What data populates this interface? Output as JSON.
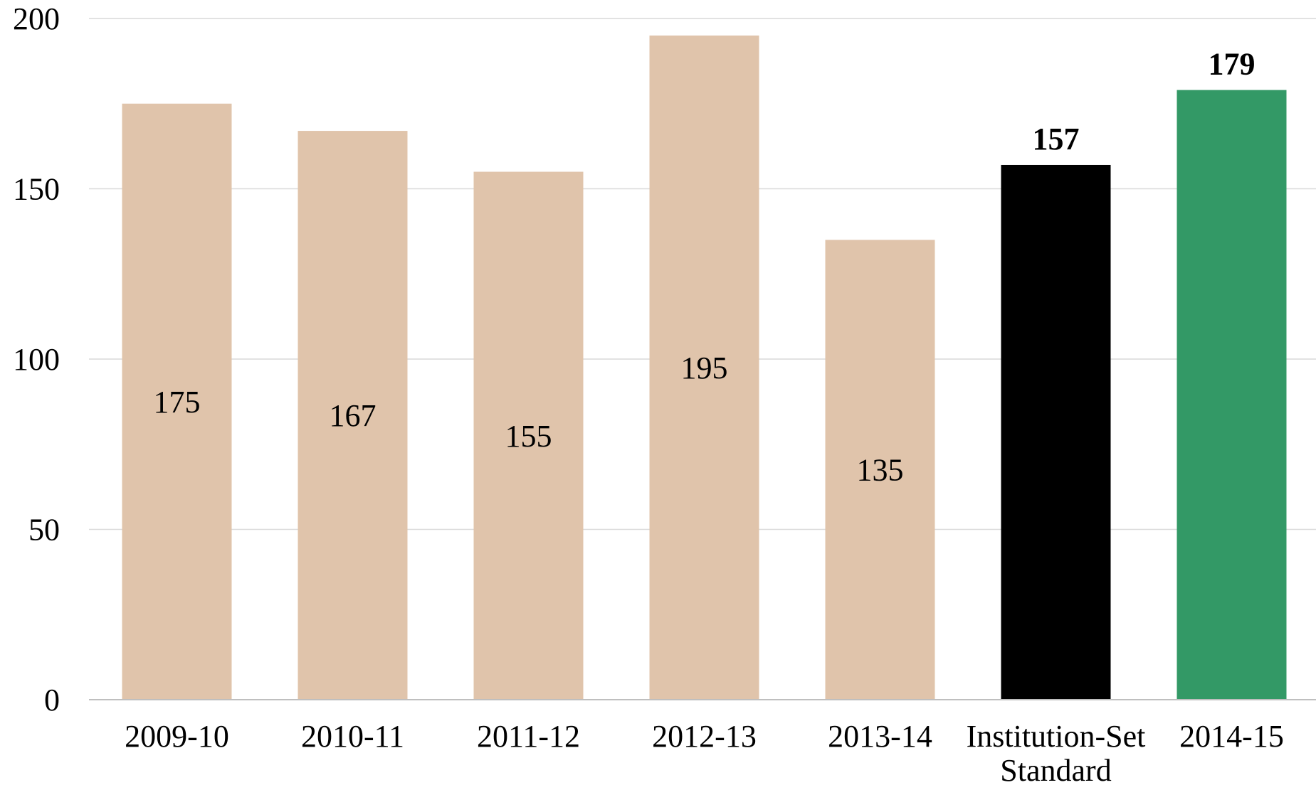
{
  "chart_data": {
    "type": "bar",
    "title": "",
    "xlabel": "",
    "ylabel": "",
    "ylim": [
      0,
      200
    ],
    "yticks": [
      0,
      50,
      100,
      150,
      200
    ],
    "grid": true,
    "legend": "none",
    "categories": [
      "2009-10",
      "2010-11",
      "2011-12",
      "2012-13",
      "2013-14",
      "Institution-Set Standard",
      "2014-15"
    ],
    "category_label_lines": [
      [
        "2009-10"
      ],
      [
        "2010-11"
      ],
      [
        "2011-12"
      ],
      [
        "2012-13"
      ],
      [
        "2013-14"
      ],
      [
        "Institution-Set",
        "Standard"
      ],
      [
        "2014-15"
      ]
    ],
    "values": [
      175,
      167,
      155,
      195,
      135,
      157,
      179
    ],
    "value_labels": [
      "175",
      "167",
      "155",
      "195",
      "135",
      "157",
      "179"
    ],
    "bar_colors": [
      "#e0c4ab",
      "#e0c4ab",
      "#e0c4ab",
      "#e0c4ab",
      "#e0c4ab",
      "#000000",
      "#339966"
    ],
    "label_positions": [
      "center",
      "center",
      "center",
      "center",
      "center",
      "outside-end",
      "outside-end"
    ],
    "label_bold": [
      false,
      false,
      false,
      false,
      false,
      true,
      true
    ],
    "gridline_color": "#d9d9d9",
    "axis_color": "#bfbfbf"
  }
}
